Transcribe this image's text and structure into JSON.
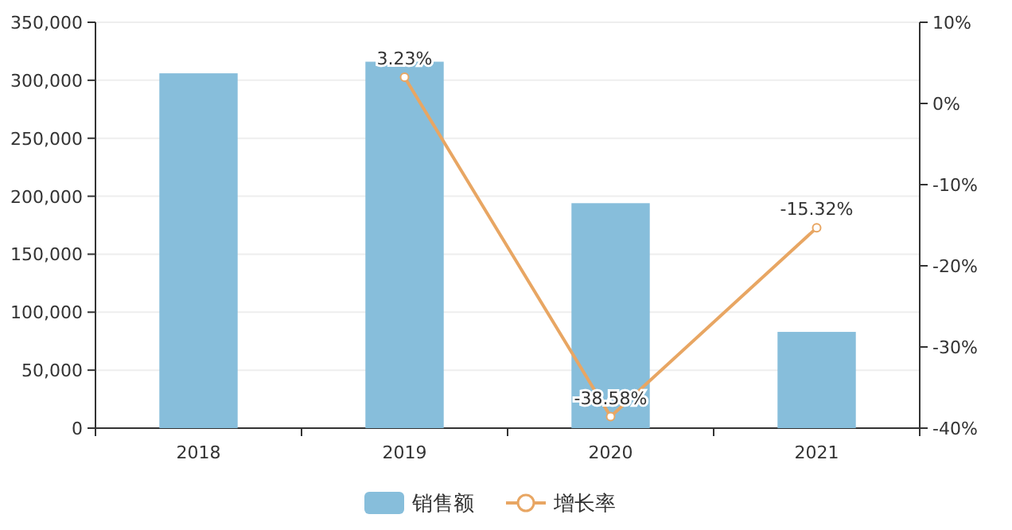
{
  "chart_data": {
    "type": "bar",
    "categories": [
      "2018",
      "2019",
      "2020",
      "2021"
    ],
    "series": [
      {
        "name": "销售额",
        "color": "#87bedb",
        "values": [
          306000,
          316000,
          194000,
          83000
        ]
      },
      {
        "name": "增长率",
        "type": "line",
        "color": "#e8a663",
        "axis": "y2",
        "values": [
          null,
          3.23,
          -38.58,
          -15.32
        ],
        "value_labels": [
          null,
          "3.23%",
          "-38.58%",
          "-15.32%"
        ]
      }
    ],
    "ylim": [
      0,
      350000
    ],
    "yticks": [
      {
        "value": 0,
        "label": "0"
      },
      {
        "value": 50000,
        "label": "50,000"
      },
      {
        "value": 100000,
        "label": "100,000"
      },
      {
        "value": 150000,
        "label": "150,000"
      },
      {
        "value": 200000,
        "label": "200,000"
      },
      {
        "value": 250000,
        "label": "250,000"
      },
      {
        "value": 300000,
        "label": "300,000"
      },
      {
        "value": 350000,
        "label": "350,000"
      }
    ],
    "y2lim": [
      -40,
      10
    ],
    "y2ticks": [
      {
        "value": -40,
        "label": "-40%"
      },
      {
        "value": -30,
        "label": "-30%"
      },
      {
        "value": -20,
        "label": "-20%"
      },
      {
        "value": -10,
        "label": "-10%"
      },
      {
        "value": 0,
        "label": "0%"
      },
      {
        "value": 10,
        "label": "10%"
      }
    ],
    "grid": "y",
    "legend": "bottom",
    "marker": "circle",
    "line_style": "solid"
  }
}
